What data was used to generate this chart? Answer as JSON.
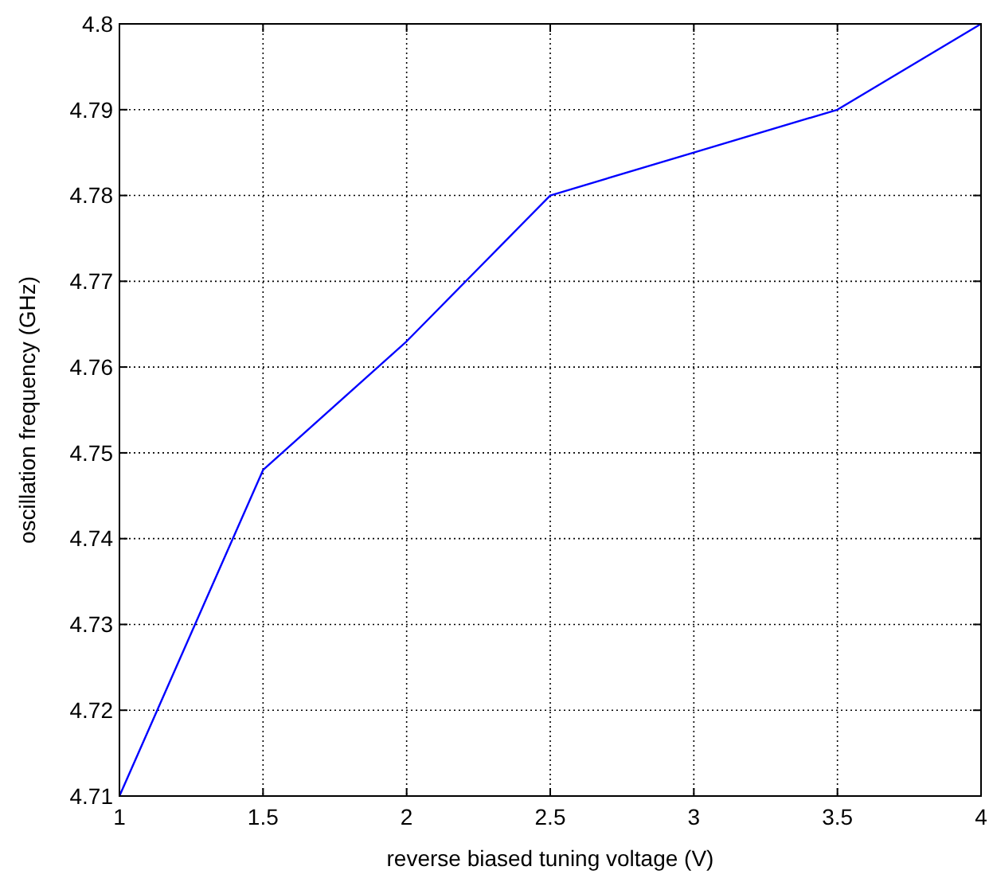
{
  "chart_data": {
    "type": "line",
    "xlabel": "reverse biased tuning voltage (V)",
    "ylabel": "oscillation frequency (GHz)",
    "x": [
      1,
      1.5,
      2,
      2.5,
      3,
      3.5,
      4
    ],
    "series": [
      {
        "color": "#0000ff",
        "values": [
          4.71,
          4.748,
          4.763,
          4.78,
          4.785,
          4.79,
          4.8
        ]
      }
    ],
    "xlim": [
      1,
      4
    ],
    "xticks": [
      1,
      1.5,
      2,
      2.5,
      3,
      3.5,
      4
    ],
    "ylim": [
      4.71,
      4.8
    ],
    "yticks": [
      4.71,
      4.72,
      4.73,
      4.74,
      4.75,
      4.76,
      4.77,
      4.78,
      4.79,
      4.8
    ],
    "grid": true,
    "marker": "none",
    "line_style": "solid"
  }
}
